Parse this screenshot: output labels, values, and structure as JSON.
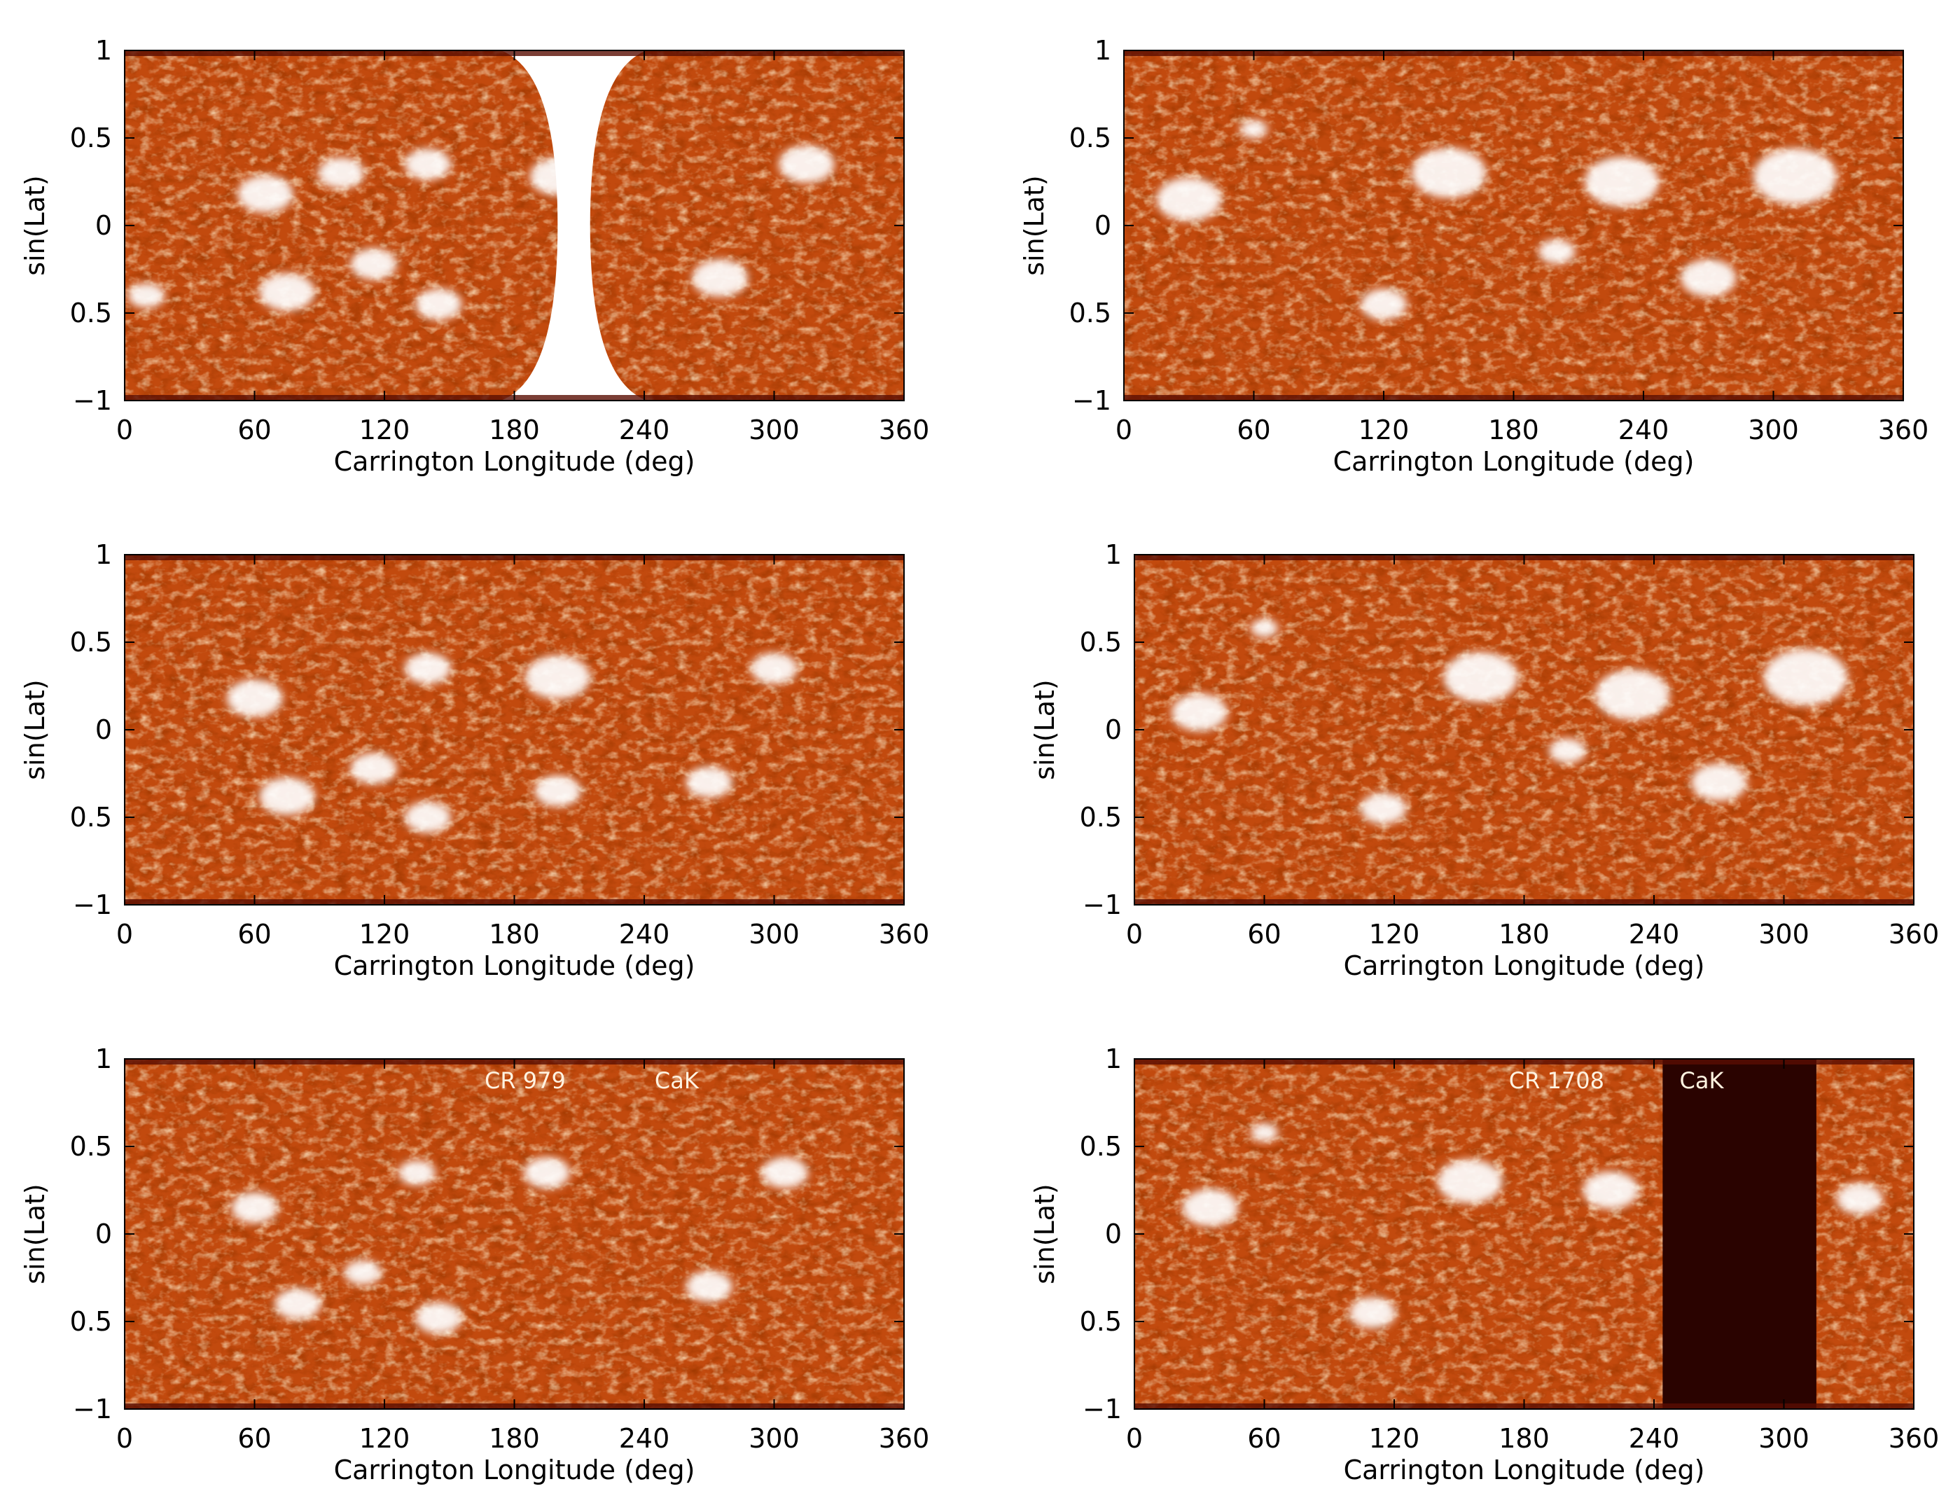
{
  "colors": {
    "background": "#ffffff",
    "map_base": "#c24a0e",
    "map_dark": "#5a0e02",
    "map_bright": "#ffffff",
    "data_gap": "#2a0300",
    "annotation_text": "#fff2e0"
  },
  "chart_data": [
    {
      "type": "heatmap",
      "panel": "top-left",
      "xlabel": "Carrington Longitude (deg)",
      "ylabel": "sin(Lat)",
      "xlim": [
        0,
        360
      ],
      "ylim": [
        -1,
        1
      ],
      "xticks": [
        "0",
        "60",
        "120",
        "180",
        "240",
        "300",
        "360"
      ],
      "yticks": [
        "1",
        "0.5",
        "0",
        "0.5",
        "−1"
      ],
      "annotations": [],
      "blank_gap_longitude": [
        200,
        215
      ],
      "bright_regions": [
        {
          "lon": 65,
          "slat": 0.18,
          "size": 0.06
        },
        {
          "lon": 100,
          "slat": 0.3,
          "size": 0.05
        },
        {
          "lon": 140,
          "slat": 0.35,
          "size": 0.05
        },
        {
          "lon": 200,
          "slat": 0.28,
          "size": 0.06
        },
        {
          "lon": 315,
          "slat": 0.35,
          "size": 0.06
        },
        {
          "lon": 115,
          "slat": -0.22,
          "size": 0.05
        },
        {
          "lon": 75,
          "slat": -0.38,
          "size": 0.06
        },
        {
          "lon": 145,
          "slat": -0.45,
          "size": 0.05
        },
        {
          "lon": 275,
          "slat": -0.3,
          "size": 0.06
        },
        {
          "lon": 10,
          "slat": -0.4,
          "size": 0.04
        }
      ]
    },
    {
      "type": "heatmap",
      "panel": "top-right",
      "xlabel": "Carrington Longitude (deg)",
      "ylabel": "sin(Lat)",
      "xlim": [
        0,
        360
      ],
      "ylim": [
        -1,
        1
      ],
      "xticks": [
        "0",
        "60",
        "120",
        "180",
        "240",
        "300",
        "360"
      ],
      "yticks": [
        "1",
        "0.5",
        "0",
        "0.5",
        "−1"
      ],
      "annotations": [],
      "bright_regions": [
        {
          "lon": 30,
          "slat": 0.15,
          "size": 0.07
        },
        {
          "lon": 60,
          "slat": 0.55,
          "size": 0.03
        },
        {
          "lon": 150,
          "slat": 0.3,
          "size": 0.08
        },
        {
          "lon": 230,
          "slat": 0.25,
          "size": 0.08
        },
        {
          "lon": 310,
          "slat": 0.28,
          "size": 0.09
        },
        {
          "lon": 120,
          "slat": -0.45,
          "size": 0.05
        },
        {
          "lon": 270,
          "slat": -0.3,
          "size": 0.06
        },
        {
          "lon": 200,
          "slat": -0.15,
          "size": 0.04
        }
      ]
    },
    {
      "type": "heatmap",
      "panel": "middle-left",
      "xlabel": "Carrington Longitude (deg)",
      "ylabel": "sin(Lat)",
      "xlim": [
        0,
        360
      ],
      "ylim": [
        -1,
        1
      ],
      "xticks": [
        "0",
        "60",
        "120",
        "180",
        "240",
        "300",
        "360"
      ],
      "yticks": [
        "1",
        "0.5",
        "0",
        "0.5",
        "−1"
      ],
      "annotations": [],
      "bright_regions": [
        {
          "lon": 60,
          "slat": 0.18,
          "size": 0.06
        },
        {
          "lon": 140,
          "slat": 0.35,
          "size": 0.05
        },
        {
          "lon": 200,
          "slat": 0.3,
          "size": 0.07
        },
        {
          "lon": 300,
          "slat": 0.35,
          "size": 0.05
        },
        {
          "lon": 115,
          "slat": -0.22,
          "size": 0.05
        },
        {
          "lon": 75,
          "slat": -0.38,
          "size": 0.06
        },
        {
          "lon": 140,
          "slat": -0.5,
          "size": 0.05
        },
        {
          "lon": 200,
          "slat": -0.35,
          "size": 0.05
        },
        {
          "lon": 270,
          "slat": -0.3,
          "size": 0.05
        }
      ]
    },
    {
      "type": "heatmap",
      "panel": "middle-right",
      "xlabel": "Carrington Longitude (deg)",
      "ylabel": "sin(Lat)",
      "xlim": [
        0,
        360
      ],
      "ylim": [
        -1,
        1
      ],
      "xticks": [
        "0",
        "60",
        "120",
        "180",
        "240",
        "300",
        "360"
      ],
      "yticks": [
        "1",
        "0.5",
        "0",
        "0.5",
        "−1"
      ],
      "annotations": [],
      "bright_regions": [
        {
          "lon": 30,
          "slat": 0.1,
          "size": 0.06
        },
        {
          "lon": 60,
          "slat": 0.58,
          "size": 0.03
        },
        {
          "lon": 160,
          "slat": 0.3,
          "size": 0.08
        },
        {
          "lon": 230,
          "slat": 0.2,
          "size": 0.08
        },
        {
          "lon": 310,
          "slat": 0.3,
          "size": 0.09
        },
        {
          "lon": 115,
          "slat": -0.45,
          "size": 0.05
        },
        {
          "lon": 270,
          "slat": -0.3,
          "size": 0.06
        },
        {
          "lon": 200,
          "slat": -0.12,
          "size": 0.04
        }
      ]
    },
    {
      "type": "heatmap",
      "panel": "bottom-left",
      "xlabel": "Carrington Longitude (deg)",
      "ylabel": "sin(Lat)",
      "xlim": [
        0,
        360
      ],
      "ylim": [
        -1,
        1
      ],
      "xticks": [
        "0",
        "60",
        "120",
        "180",
        "240",
        "300",
        "360"
      ],
      "yticks": [
        "1",
        "0.5",
        "0",
        "0.5",
        "−1"
      ],
      "annotations": [
        {
          "text": "CR 979",
          "lon": 185,
          "slat": 0.88
        },
        {
          "text": "CaK",
          "lon": 255,
          "slat": 0.88
        }
      ],
      "bright_regions": [
        {
          "lon": 60,
          "slat": 0.15,
          "size": 0.05
        },
        {
          "lon": 135,
          "slat": 0.35,
          "size": 0.04
        },
        {
          "lon": 195,
          "slat": 0.35,
          "size": 0.05
        },
        {
          "lon": 305,
          "slat": 0.35,
          "size": 0.05
        },
        {
          "lon": 110,
          "slat": -0.22,
          "size": 0.04
        },
        {
          "lon": 145,
          "slat": -0.48,
          "size": 0.05
        },
        {
          "lon": 270,
          "slat": -0.3,
          "size": 0.05
        },
        {
          "lon": 80,
          "slat": -0.4,
          "size": 0.05
        }
      ]
    },
    {
      "type": "heatmap",
      "panel": "bottom-right",
      "xlabel": "Carrington Longitude (deg)",
      "ylabel": "sin(Lat)",
      "xlim": [
        0,
        360
      ],
      "ylim": [
        -1,
        1
      ],
      "xticks": [
        "0",
        "60",
        "120",
        "180",
        "240",
        "300",
        "360"
      ],
      "yticks": [
        "1",
        "0.5",
        "0",
        "0.5",
        "−1"
      ],
      "annotations": [
        {
          "text": "CR 1708",
          "lon": 195,
          "slat": 0.88
        },
        {
          "text": "CaK",
          "lon": 262,
          "slat": 0.88
        }
      ],
      "data_gap_longitude": [
        244,
        315
      ],
      "bright_regions": [
        {
          "lon": 35,
          "slat": 0.15,
          "size": 0.06
        },
        {
          "lon": 60,
          "slat": 0.58,
          "size": 0.03
        },
        {
          "lon": 155,
          "slat": 0.3,
          "size": 0.07
        },
        {
          "lon": 220,
          "slat": 0.25,
          "size": 0.06
        },
        {
          "lon": 110,
          "slat": -0.45,
          "size": 0.05
        },
        {
          "lon": 335,
          "slat": 0.2,
          "size": 0.05
        }
      ]
    }
  ]
}
